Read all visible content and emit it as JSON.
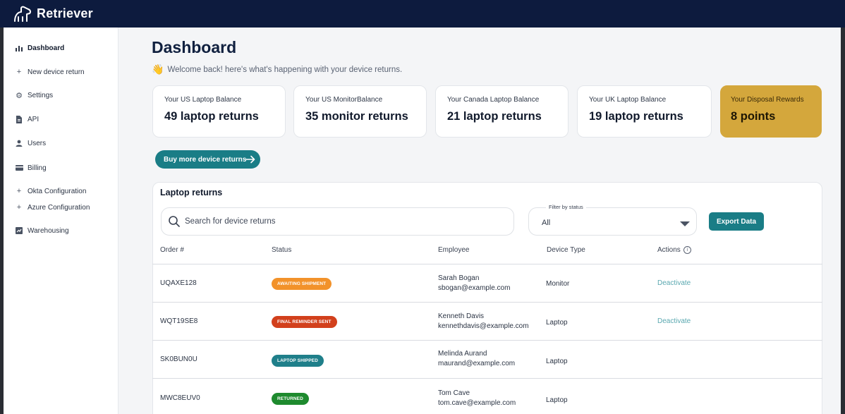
{
  "app": {
    "brand": "Retriever"
  },
  "sidebar": {
    "items": [
      {
        "label": "Dashboard",
        "icon": "bar-chart-icon"
      },
      {
        "label": "New device return",
        "icon": "plus-icon"
      },
      {
        "label": "Settings",
        "icon": "gear-icon"
      },
      {
        "label": "API",
        "icon": "document-icon"
      },
      {
        "label": "Users",
        "icon": "user-icon"
      },
      {
        "label": "Billing",
        "icon": "credit-card-icon"
      },
      {
        "label": "Okta Configuration",
        "icon": "plus-icon"
      },
      {
        "label": "Azure Configuration",
        "icon": "plus-icon"
      },
      {
        "label": "Warehousing",
        "icon": "chart-box-icon"
      }
    ]
  },
  "header": {
    "title": "Dashboard",
    "welcome": "Welcome back! here's what's happening with your device returns."
  },
  "cards": [
    {
      "label": "Your US Laptop Balance",
      "value": "49 laptop returns"
    },
    {
      "label": "Your US MonitorBalance",
      "value": "35 monitor returns"
    },
    {
      "label": "Your Canada Laptop Balance",
      "value": "21 laptop returns"
    },
    {
      "label": "Your UK Laptop Balance",
      "value": "19 laptop returns"
    },
    {
      "label": "Your Disposal Rewards",
      "value": "8 points"
    }
  ],
  "buy_button": "Buy more device returns",
  "returns": {
    "title": "Laptop returns",
    "search_placeholder": "Search for device returns",
    "filter_label": "Filter by status",
    "filter_value": "All",
    "export_label": "Export Data",
    "columns": [
      "Order #",
      "Status",
      "Employee",
      "Device Type",
      "Actions"
    ],
    "rows": [
      {
        "order": "UQAXE128",
        "status": "AWAITING SHIPMENT",
        "status_color": "#f2922a",
        "name": "Sarah Bogan",
        "email": "sbogan@example.com",
        "device": "Monitor",
        "action": "Deactivate"
      },
      {
        "order": "WQT19SE8",
        "status": "FINAL REMINDER SENT",
        "status_color": "#d2401c",
        "name": "Kenneth Davis",
        "email": "kennethdavis@example.com",
        "device": "Laptop",
        "action": "Deactivate"
      },
      {
        "order": "SK0BUN0U",
        "status": "LAPTOP SHIPPED",
        "status_color": "#1f7f8a",
        "name": "Melinda Aurand",
        "email": "maurand@example.com",
        "device": "Laptop",
        "action": ""
      },
      {
        "order": "MWC8EUV0",
        "status": "RETURNED",
        "status_color": "#1e8a2e",
        "name": "Tom Cave",
        "email": "tom.cave@example.com",
        "device": "Laptop",
        "action": ""
      }
    ]
  },
  "colors": {
    "topbar": "#0d1b3e",
    "accent": "#1a7d86",
    "gold": "#d4a73c"
  }
}
